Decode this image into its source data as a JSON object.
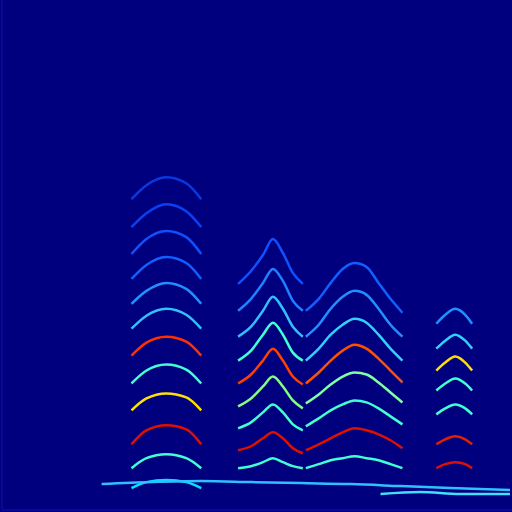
{
  "chart_data": {
    "type": "spectrogram",
    "xlim": [
      0,
      512
    ],
    "ylim": [
      0,
      512
    ],
    "grid": false,
    "tick_labels": false,
    "series": [
      {
        "color": "#00e5ff",
        "x": [
          130,
          145,
          165,
          185,
          200
        ],
        "values": [
          22,
          28,
          30,
          28,
          22
        ]
      },
      {
        "color": "#40ffd0",
        "x": [
          130,
          145,
          165,
          185,
          200
        ],
        "values": [
          42,
          52,
          56,
          52,
          42
        ]
      },
      {
        "color": "#e01000",
        "x": [
          130,
          145,
          165,
          185,
          200
        ],
        "values": [
          66,
          80,
          85,
          81,
          66
        ]
      },
      {
        "color": "#ffe000",
        "x": [
          130,
          145,
          165,
          185,
          200
        ],
        "values": [
          100,
          112,
          117,
          113,
          100
        ]
      },
      {
        "color": "#40ffd0",
        "x": [
          130,
          145,
          165,
          185,
          200
        ],
        "values": [
          127,
          140,
          146,
          141,
          127
        ]
      },
      {
        "color": "#ff3000",
        "x": [
          130,
          145,
          165,
          185,
          200
        ],
        "values": [
          155,
          168,
          174,
          169,
          155
        ]
      },
      {
        "color": "#30c0ff",
        "x": [
          130,
          145,
          165,
          185,
          200
        ],
        "values": [
          182,
          195,
          202,
          196,
          182
        ]
      },
      {
        "color": "#2090ff",
        "x": [
          130,
          145,
          165,
          185,
          200
        ],
        "values": [
          207,
          220,
          228,
          222,
          207
        ]
      },
      {
        "color": "#1060ff",
        "x": [
          130,
          145,
          165,
          185,
          200
        ],
        "values": [
          232,
          246,
          254,
          248,
          232
        ]
      },
      {
        "color": "#1050ff",
        "x": [
          130,
          145,
          165,
          185,
          200
        ],
        "values": [
          257,
          272,
          280,
          274,
          257
        ]
      },
      {
        "color": "#0a40f0",
        "x": [
          130,
          145,
          165,
          185,
          200
        ],
        "values": [
          284,
          298,
          307,
          300,
          284
        ]
      },
      {
        "color": "#0838e0",
        "x": [
          130,
          145,
          165,
          185,
          200
        ],
        "values": [
          312,
          326,
          334,
          328,
          312
        ]
      },
      {
        "color": "#40ffd0",
        "x": [
          237,
          250,
          262,
          272,
          282,
          292,
          302
        ],
        "values": [
          42,
          44,
          48,
          52,
          48,
          44,
          42
        ]
      },
      {
        "color": "#e01000",
        "x": [
          237,
          250,
          262,
          272,
          282,
          292,
          302
        ],
        "values": [
          60,
          64,
          72,
          78,
          72,
          62,
          57
        ]
      },
      {
        "color": "#40ffd0",
        "x": [
          237,
          250,
          262,
          272,
          282,
          292,
          302
        ],
        "values": [
          82,
          88,
          98,
          106,
          98,
          86,
          80
        ]
      },
      {
        "color": "#80ff80",
        "x": [
          237,
          250,
          262,
          272,
          282,
          292,
          302
        ],
        "values": [
          104,
          112,
          124,
          134,
          124,
          110,
          102
        ]
      },
      {
        "color": "#ff4000",
        "x": [
          237,
          250,
          262,
          272,
          282,
          292,
          302
        ],
        "values": [
          127,
          136,
          150,
          162,
          150,
          134,
          126
        ]
      },
      {
        "color": "#40ffd0",
        "x": [
          237,
          250,
          262,
          272,
          282,
          292,
          302
        ],
        "values": [
          150,
          160,
          176,
          188,
          176,
          158,
          150
        ]
      },
      {
        "color": "#30c0ff",
        "x": [
          237,
          250,
          262,
          272,
          282,
          292,
          302
        ],
        "values": [
          174,
          184,
          200,
          214,
          202,
          184,
          174
        ]
      },
      {
        "color": "#2080ff",
        "x": [
          237,
          250,
          262,
          272,
          282,
          292,
          302
        ],
        "values": [
          200,
          212,
          228,
          242,
          230,
          210,
          200
        ]
      },
      {
        "color": "#1050ff",
        "x": [
          237,
          250,
          262,
          272,
          282,
          292,
          302
        ],
        "values": [
          227,
          240,
          256,
          272,
          258,
          238,
          227
        ]
      },
      {
        "color": "#40ffd0",
        "x": [
          305,
          318,
          330,
          342,
          354,
          366,
          378,
          390,
          402
        ],
        "values": [
          42,
          46,
          50,
          52,
          54,
          52,
          50,
          46,
          42
        ]
      },
      {
        "color": "#e01000",
        "x": [
          305,
          318,
          330,
          342,
          354,
          366,
          378,
          390,
          402
        ],
        "values": [
          60,
          66,
          72,
          78,
          82,
          80,
          76,
          70,
          62
        ]
      },
      {
        "color": "#40ffd0",
        "x": [
          305,
          318,
          330,
          342,
          354,
          366,
          378,
          390,
          402
        ],
        "values": [
          84,
          92,
          100,
          106,
          110,
          108,
          102,
          94,
          86
        ]
      },
      {
        "color": "#80ffa0",
        "x": [
          305,
          318,
          330,
          342,
          354,
          366,
          378,
          390,
          402
        ],
        "values": [
          107,
          116,
          126,
          134,
          138,
          136,
          128,
          118,
          108
        ]
      },
      {
        "color": "#ff5000",
        "x": [
          305,
          318,
          330,
          342,
          354,
          366,
          378,
          390,
          402
        ],
        "values": [
          127,
          138,
          150,
          160,
          166,
          162,
          152,
          140,
          128
        ]
      },
      {
        "color": "#30d0ff",
        "x": [
          305,
          318,
          330,
          342,
          354,
          366,
          378,
          390,
          402
        ],
        "values": [
          150,
          162,
          176,
          186,
          192,
          188,
          176,
          162,
          150
        ]
      },
      {
        "color": "#2090ff",
        "x": [
          305,
          318,
          330,
          342,
          354,
          366,
          378,
          390,
          402
        ],
        "values": [
          174,
          186,
          202,
          214,
          220,
          216,
          202,
          186,
          174
        ]
      },
      {
        "color": "#1060ff",
        "x": [
          305,
          318,
          330,
          342,
          354,
          366,
          378,
          390,
          402
        ],
        "values": [
          200,
          212,
          228,
          242,
          248,
          244,
          228,
          212,
          198
        ]
      },
      {
        "color": "#e01000",
        "x": [
          436,
          445,
          455,
          465,
          472
        ],
        "values": [
          42,
          46,
          48,
          46,
          42
        ]
      },
      {
        "color": "#e02000",
        "x": [
          436,
          445,
          455,
          465,
          472
        ],
        "values": [
          66,
          71,
          74,
          71,
          66
        ]
      },
      {
        "color": "#40ffd0",
        "x": [
          436,
          445,
          455,
          465,
          472
        ],
        "values": [
          96,
          102,
          106,
          102,
          96
        ]
      },
      {
        "color": "#40ffd0",
        "x": [
          436,
          445,
          455,
          465,
          472
        ],
        "values": [
          120,
          127,
          132,
          127,
          120
        ]
      },
      {
        "color": "#ffe000",
        "x": [
          436,
          445,
          455,
          465,
          472
        ],
        "values": [
          140,
          148,
          154,
          148,
          140
        ]
      },
      {
        "color": "#30d0ff",
        "x": [
          436,
          445,
          455,
          465,
          472
        ],
        "values": [
          162,
          170,
          176,
          170,
          162
        ]
      },
      {
        "color": "#2090ff",
        "x": [
          436,
          445,
          455,
          465,
          472
        ],
        "values": [
          187,
          196,
          202,
          196,
          187
        ]
      },
      {
        "color": "#30c0ff",
        "x": [
          100,
          150,
          200,
          250,
          300,
          350,
          400,
          450,
          510
        ],
        "values": [
          26,
          28,
          29,
          28,
          27,
          26,
          24,
          22,
          20
        ]
      },
      {
        "color": "#40e0ff",
        "x": [
          380,
          420,
          460,
          510
        ],
        "values": [
          16,
          18,
          16,
          16
        ]
      }
    ]
  }
}
